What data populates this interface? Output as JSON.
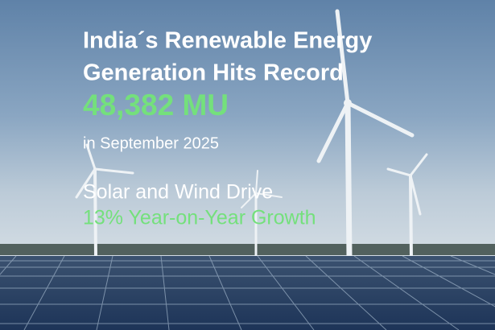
{
  "headline": {
    "line1": "India´s Renewable Energy",
    "line2": "Generation Hits Record"
  },
  "figure": "48,382 MU",
  "period": "in September 2025",
  "subhead": "Solar and Wind Drive",
  "growth": "13% Year-on-Year Growth"
}
